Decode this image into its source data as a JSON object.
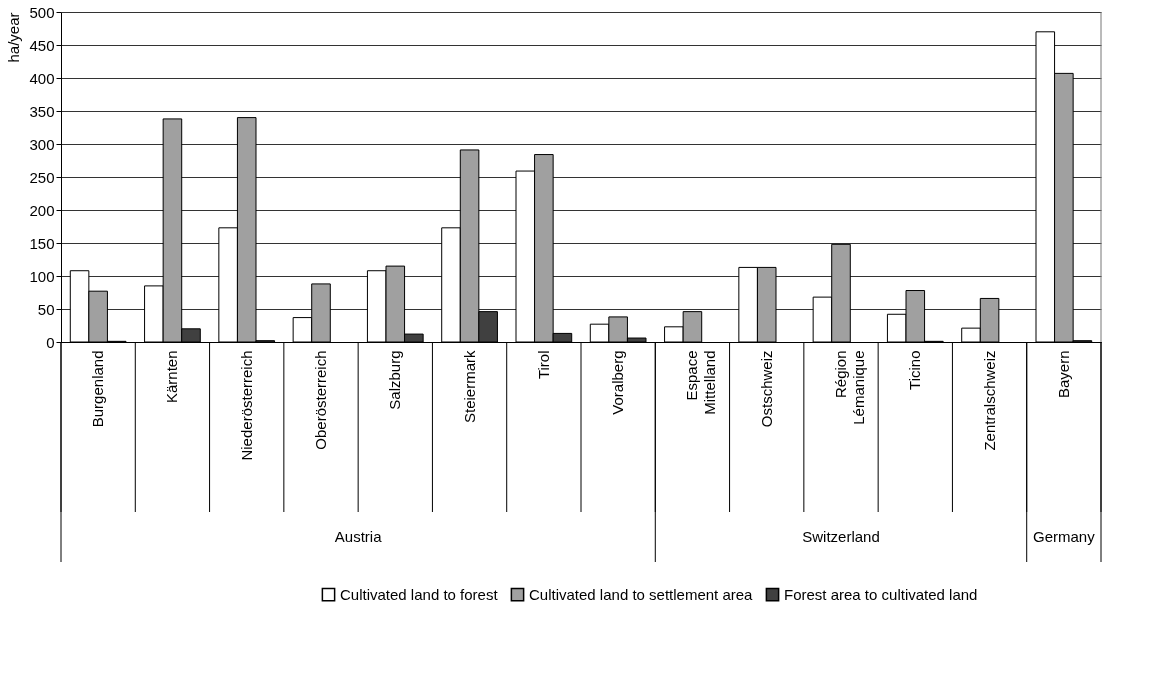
{
  "chart_data": {
    "type": "bar",
    "ylabel": "ha/year",
    "categories": [
      "Burgenland",
      "Kärnten",
      "Niederösterreich",
      "Oberösterreich",
      "Salzburg",
      "Steiermark",
      "Tirol",
      "Voralberg",
      "Espace Mittelland",
      "Ostschweiz",
      "Région Lémanique",
      "Ticino",
      "Zentralschweiz",
      "Bayern"
    ],
    "series": [
      {
        "name": "Cultivated land to forest",
        "color": "#ffffff",
        "values": [
          108,
          85,
          173,
          37,
          108,
          173,
          259,
          27,
          23,
          113,
          68,
          42,
          21,
          470
        ]
      },
      {
        "name": "Cultivated land to settlement area",
        "color": "#a0a0a0",
        "values": [
          77,
          338,
          340,
          88,
          115,
          291,
          284,
          38,
          46,
          113,
          148,
          78,
          66,
          407
        ]
      },
      {
        "name": "Forest area to cultivated land",
        "color": "#404040",
        "values": [
          1,
          20,
          2,
          0,
          12,
          46,
          13,
          6,
          0,
          0,
          0,
          1,
          0,
          2
        ]
      }
    ],
    "ylim": [
      0,
      500
    ],
    "yticks": [
      0,
      50,
      100,
      150,
      200,
      250,
      300,
      350,
      400,
      450,
      500
    ],
    "grid": "y",
    "legend": "bottom",
    "annotations": [
      "Austria",
      "Switzerland",
      "Germany"
    ]
  }
}
